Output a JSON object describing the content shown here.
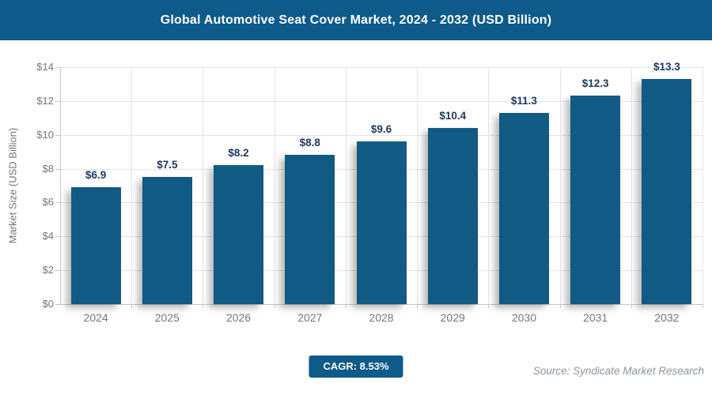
{
  "header": {
    "title": "Global Automotive Seat Cover Market, 2024 - 2032 (USD Billion)"
  },
  "footer": {
    "cagr_label": "CAGR: 8.53%",
    "source": "Source: Syndicate Market Research"
  },
  "colors": {
    "header_bg": "#0E5A8A",
    "title_text": "#FFFFFF",
    "bar_fill": "#115A83",
    "value_label": "#1F3864",
    "axis_text": "#757575",
    "grid_line": "#E3E3E3",
    "axis_line": "#C6C6C6",
    "badge_bg": "#0E5A8A",
    "badge_text": "#FFFFFF",
    "source_text": "#8A959D"
  },
  "chart_data": {
    "type": "bar",
    "title": "Global Automotive Seat Cover Market, 2024 - 2032 (USD Billion)",
    "categories": [
      "2024",
      "2025",
      "2026",
      "2027",
      "2028",
      "2029",
      "2030",
      "2031",
      "2032"
    ],
    "values": [
      6.9,
      7.5,
      8.2,
      8.8,
      9.6,
      10.4,
      11.3,
      12.3,
      13.3
    ],
    "value_labels": [
      "$6.9",
      "$7.5",
      "$8.2",
      "$8.8",
      "$9.6",
      "$10.4",
      "$11.3",
      "$12.3",
      "$13.3"
    ],
    "xlabel": "",
    "ylabel": "Market Size (USD Billion)",
    "ylim": [
      0,
      14
    ],
    "y_ticks": [
      {
        "value": 0,
        "label": "$0"
      },
      {
        "value": 2,
        "label": "$2"
      },
      {
        "value": 4,
        "label": "$4"
      },
      {
        "value": 6,
        "label": "$6"
      },
      {
        "value": 8,
        "label": "$8"
      },
      {
        "value": 10,
        "label": "$10"
      },
      {
        "value": 12,
        "label": "$12"
      },
      {
        "value": 14,
        "label": "$14"
      }
    ],
    "grid": true,
    "legend": false,
    "cagr": "8.53%"
  }
}
